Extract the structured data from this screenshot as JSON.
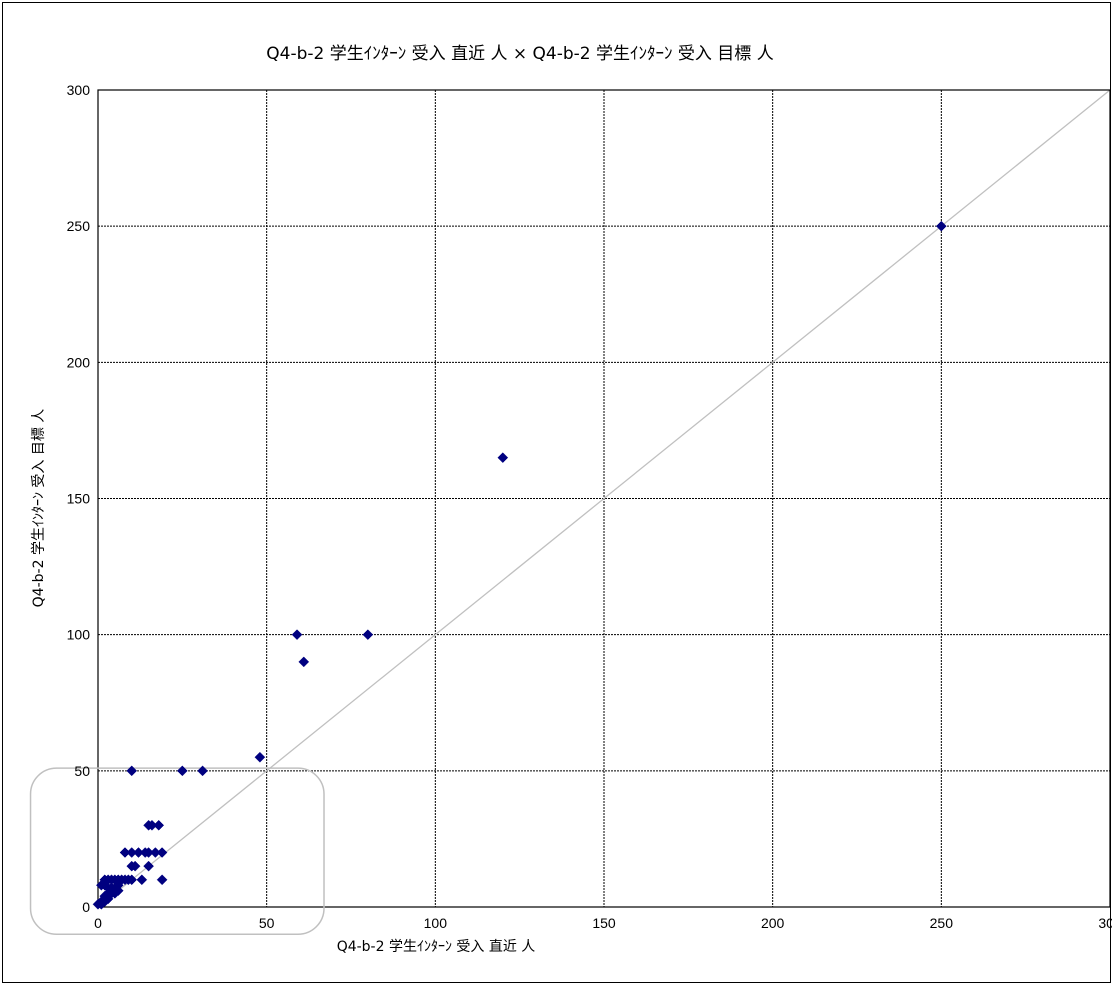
{
  "chart_data": {
    "type": "scatter",
    "title": "Q4-b-2 学生ｲﾝﾀｰﾝ 受入 直近 人 × Q4-b-2 学生ｲﾝﾀｰﾝ 受入 目標 人",
    "xlabel": "Q4-b-2 学生ｲﾝﾀｰﾝ 受入 直近 人",
    "ylabel": "Q4-b-2 学生ｲﾝﾀｰﾝ 受入 目標 人",
    "xlim": [
      0,
      300
    ],
    "ylim": [
      0,
      300
    ],
    "x_ticks": [
      0,
      50,
      100,
      150,
      200,
      250,
      300
    ],
    "y_ticks": [
      0,
      50,
      100,
      150,
      200,
      250,
      300
    ],
    "grid": true,
    "reference_line": {
      "from": [
        0,
        0
      ],
      "to": [
        300,
        300
      ],
      "color": "#c0c0c0"
    },
    "highlight_box": {
      "x_range": [
        -20,
        67
      ],
      "y_range": [
        -10,
        51
      ],
      "color": "#c0c0c0"
    },
    "marker_color": "#000080",
    "series": [
      {
        "values": [
          [
            250,
            250
          ],
          [
            120,
            165
          ],
          [
            59,
            100
          ],
          [
            80,
            100
          ],
          [
            61,
            90
          ],
          [
            48,
            55
          ],
          [
            10,
            50
          ],
          [
            25,
            50
          ],
          [
            31,
            50
          ],
          [
            15,
            30
          ],
          [
            16,
            30
          ],
          [
            18,
            30
          ],
          [
            8,
            20
          ],
          [
            10,
            20
          ],
          [
            12,
            20
          ],
          [
            14,
            20
          ],
          [
            15,
            20
          ],
          [
            17,
            20
          ],
          [
            19,
            20
          ],
          [
            10,
            15
          ],
          [
            11,
            15
          ],
          [
            15,
            15
          ],
          [
            19,
            10
          ],
          [
            2,
            10
          ],
          [
            3,
            10
          ],
          [
            4,
            10
          ],
          [
            5,
            10
          ],
          [
            6,
            10
          ],
          [
            7,
            10
          ],
          [
            8,
            10
          ],
          [
            9,
            10
          ],
          [
            10,
            10
          ],
          [
            13,
            10
          ],
          [
            1,
            8
          ],
          [
            2,
            8
          ],
          [
            3,
            7
          ],
          [
            4,
            7
          ],
          [
            5,
            7
          ],
          [
            6,
            6
          ],
          [
            4,
            5
          ],
          [
            5,
            5
          ],
          [
            3,
            5
          ],
          [
            2,
            4
          ],
          [
            3,
            3
          ],
          [
            2,
            3
          ],
          [
            1,
            2
          ],
          [
            2,
            2
          ],
          [
            1,
            1
          ],
          [
            0,
            1
          ],
          [
            4,
            6
          ],
          [
            6,
            8
          ]
        ]
      }
    ]
  }
}
